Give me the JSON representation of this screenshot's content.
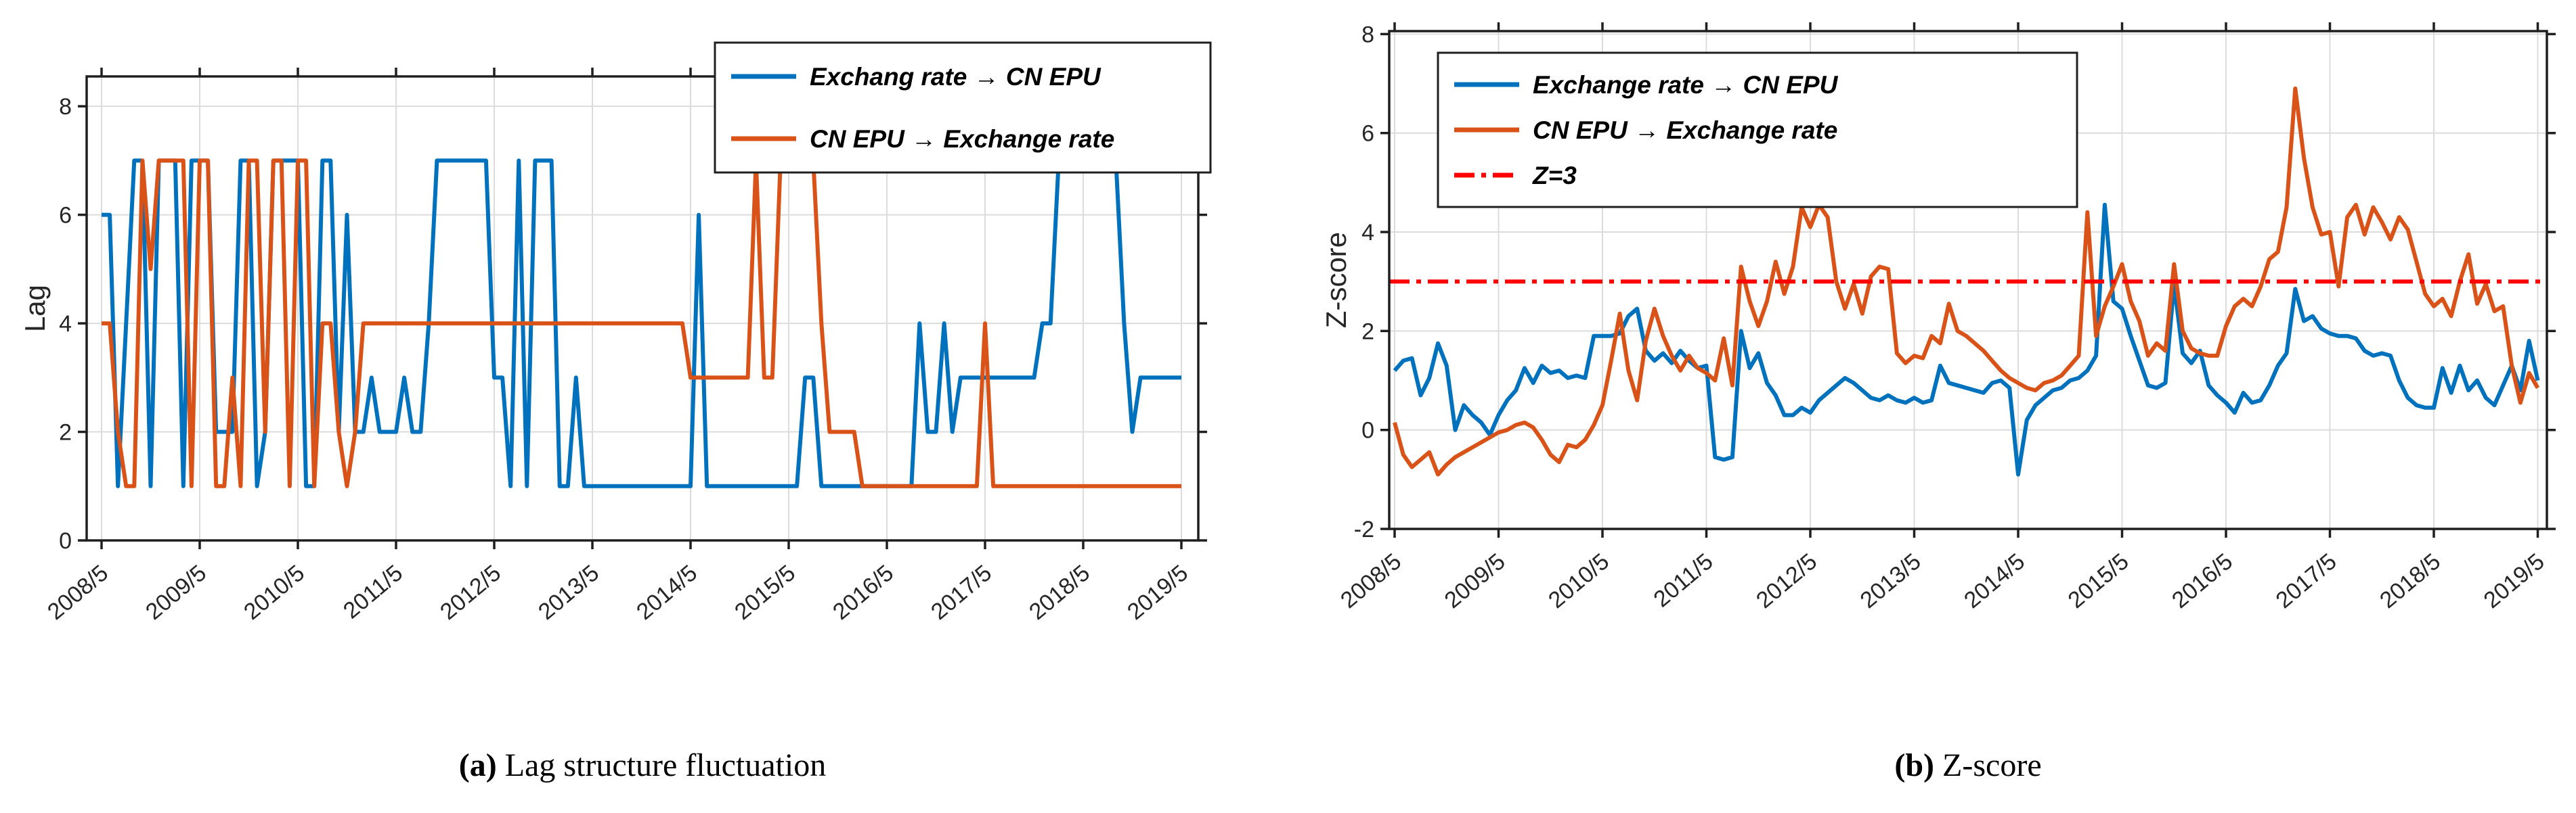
{
  "figure": {
    "background": "#ffffff"
  },
  "colors": {
    "blue": "#0072BD",
    "orange": "#D95319",
    "red": "#FF0000",
    "axis": "#1f1f1f",
    "grid": "#dcdcdc",
    "text": "#262626"
  },
  "captions": {
    "a": {
      "marker": "(a)",
      "text": " Lag structure fluctuation"
    },
    "b": {
      "marker": "(b)",
      "text": " Z-score"
    }
  },
  "chart_data": [
    {
      "id": "lag",
      "type": "line",
      "title": "",
      "xlabel": "",
      "ylabel": "Lag",
      "x_tick_labels": [
        "2008/5",
        "2009/5",
        "2010/5",
        "2011/5",
        "2012/5",
        "2013/5",
        "2014/5",
        "2015/5",
        "2016/5",
        "2017/5",
        "2018/5",
        "2019/5"
      ],
      "months_per_tick": 12,
      "n_points": 133,
      "ylim": [
        0,
        8.55
      ],
      "yticks": [
        0,
        2,
        4,
        6,
        8
      ],
      "grid": true,
      "legend": {
        "position": "top-right",
        "entries": [
          {
            "label": "Exchang rate → CN EPU",
            "color_key": "blue",
            "dash": "solid"
          },
          {
            "label": "CN EPU → Exchange rate",
            "color_key": "orange",
            "dash": "solid"
          }
        ]
      },
      "series": [
        {
          "name": "Exchang rate → CN EPU",
          "color_key": "blue",
          "values": [
            6,
            6,
            1,
            4,
            7,
            7,
            1,
            7,
            7,
            7,
            1,
            7,
            7,
            7,
            2,
            2,
            2,
            7,
            7,
            1,
            2,
            7,
            7,
            7,
            7,
            1,
            1,
            7,
            7,
            2,
            6,
            2,
            2,
            3,
            2,
            2,
            2,
            3,
            2,
            2,
            4,
            7,
            7,
            7,
            7,
            7,
            7,
            7,
            3,
            3,
            1,
            7,
            1,
            7,
            7,
            7,
            1,
            1,
            3,
            1,
            1,
            1,
            1,
            1,
            1,
            1,
            1,
            1,
            1,
            1,
            1,
            1,
            1,
            6,
            1,
            1,
            1,
            1,
            1,
            1,
            1,
            1,
            1,
            1,
            1,
            1,
            3,
            3,
            1,
            1,
            1,
            1,
            1,
            1,
            1,
            1,
            1,
            1,
            1,
            1,
            4,
            2,
            2,
            4,
            2,
            3,
            3,
            3,
            3,
            3,
            3,
            3,
            3,
            3,
            3,
            4,
            4,
            7,
            7,
            7,
            7,
            7,
            7,
            7,
            7,
            4,
            2,
            3,
            3,
            3,
            3,
            3,
            3
          ]
        },
        {
          "name": "CN EPU → Exchange rate",
          "color_key": "orange",
          "values": [
            4,
            4,
            2,
            1,
            1,
            7,
            5,
            7,
            7,
            7,
            7,
            1,
            7,
            7,
            1,
            1,
            3,
            1,
            7,
            7,
            2,
            7,
            7,
            1,
            7,
            7,
            1,
            4,
            4,
            2,
            1,
            2,
            4,
            4,
            4,
            4,
            4,
            4,
            4,
            4,
            4,
            4,
            4,
            4,
            4,
            4,
            4,
            4,
            4,
            4,
            4,
            4,
            4,
            4,
            4,
            4,
            4,
            4,
            4,
            4,
            4,
            4,
            4,
            4,
            4,
            4,
            4,
            4,
            4,
            4,
            4,
            4,
            3,
            3,
            3,
            3,
            3,
            3,
            3,
            3,
            7,
            3,
            3,
            7,
            7,
            7,
            7,
            7,
            4,
            2,
            2,
            2,
            2,
            1,
            1,
            1,
            1,
            1,
            1,
            1,
            1,
            1,
            1,
            1,
            1,
            1,
            1,
            1,
            4,
            1,
            1,
            1,
            1,
            1,
            1,
            1,
            1,
            1,
            1,
            1,
            1,
            1,
            1,
            1,
            1,
            1,
            1,
            1,
            1,
            1,
            1,
            1,
            1
          ]
        }
      ]
    },
    {
      "id": "z",
      "type": "line",
      "title": "",
      "xlabel": "",
      "ylabel": "Z-score",
      "x_tick_labels": [
        "2008/5",
        "2009/5",
        "2010/5",
        "2011/5",
        "2012/5",
        "2013/5",
        "2014/5",
        "2015/5",
        "2016/5",
        "2017/5",
        "2018/5",
        "2019/5"
      ],
      "months_per_tick": 12,
      "n_points": 133,
      "ylim": [
        -2,
        8.06
      ],
      "yticks": [
        -2,
        0,
        2,
        4,
        6,
        8
      ],
      "grid": true,
      "refline": {
        "label": "Z=3",
        "value": 3,
        "color_key": "red",
        "dash": "dashdot"
      },
      "legend": {
        "position": "top-left",
        "entries": [
          {
            "label": "Exchange rate → CN EPU",
            "color_key": "blue",
            "dash": "solid"
          },
          {
            "label": "CN EPU → Exchange rate",
            "color_key": "orange",
            "dash": "solid"
          },
          {
            "label": "Z=3",
            "color_key": "red",
            "dash": "dashdot"
          }
        ]
      },
      "series": [
        {
          "name": "Exchange rate → CN EPU",
          "color_key": "blue",
          "values": [
            1.2,
            1.4,
            1.45,
            0.7,
            1.05,
            1.75,
            1.3,
            0.0,
            0.5,
            0.3,
            0.15,
            -0.1,
            0.3,
            0.6,
            0.8,
            1.25,
            0.95,
            1.3,
            1.15,
            1.2,
            1.05,
            1.1,
            1.05,
            1.9,
            1.9,
            1.9,
            1.95,
            2.3,
            2.45,
            1.6,
            1.4,
            1.55,
            1.35,
            1.6,
            1.4,
            1.25,
            1.3,
            -0.55,
            -0.6,
            -0.55,
            2.0,
            1.25,
            1.55,
            0.95,
            0.7,
            0.3,
            0.3,
            0.45,
            0.35,
            0.6,
            0.75,
            0.9,
            1.05,
            0.95,
            0.8,
            0.65,
            0.6,
            0.7,
            0.6,
            0.55,
            0.65,
            0.55,
            0.6,
            1.3,
            0.95,
            0.9,
            0.85,
            0.8,
            0.75,
            0.95,
            1.0,
            0.85,
            -0.9,
            0.2,
            0.5,
            0.65,
            0.8,
            0.85,
            1.0,
            1.05,
            1.2,
            1.5,
            4.55,
            2.6,
            2.45,
            1.9,
            1.4,
            0.9,
            0.85,
            0.95,
            2.95,
            1.55,
            1.35,
            1.6,
            0.9,
            0.7,
            0.55,
            0.35,
            0.75,
            0.55,
            0.6,
            0.9,
            1.3,
            1.55,
            2.85,
            2.2,
            2.3,
            2.05,
            1.95,
            1.9,
            1.9,
            1.85,
            1.6,
            1.5,
            1.55,
            1.5,
            1.0,
            0.65,
            0.5,
            0.45,
            0.45,
            1.25,
            0.75,
            1.3,
            0.8,
            1.0,
            0.65,
            0.5,
            0.9,
            1.3,
            0.8,
            1.8,
            1.0
          ]
        },
        {
          "name": "CN EPU → Exchange rate",
          "color_key": "orange",
          "values": [
            0.15,
            -0.5,
            -0.75,
            -0.6,
            -0.45,
            -0.9,
            -0.7,
            -0.55,
            -0.45,
            -0.35,
            -0.25,
            -0.15,
            -0.05,
            0.0,
            0.1,
            0.15,
            0.05,
            -0.2,
            -0.5,
            -0.65,
            -0.3,
            -0.35,
            -0.2,
            0.1,
            0.5,
            1.4,
            2.35,
            1.2,
            0.6,
            1.8,
            2.45,
            1.9,
            1.5,
            1.2,
            1.5,
            1.25,
            1.15,
            1.0,
            1.85,
            0.9,
            3.3,
            2.6,
            2.1,
            2.6,
            3.4,
            2.75,
            3.3,
            4.5,
            4.1,
            4.55,
            4.3,
            3.0,
            2.45,
            2.95,
            2.35,
            3.1,
            3.3,
            3.25,
            1.55,
            1.35,
            1.5,
            1.45,
            1.9,
            1.75,
            2.55,
            2.0,
            1.9,
            1.75,
            1.6,
            1.4,
            1.2,
            1.05,
            0.95,
            0.85,
            0.8,
            0.95,
            1.0,
            1.1,
            1.3,
            1.5,
            4.4,
            1.9,
            2.5,
            2.9,
            3.35,
            2.6,
            2.2,
            1.5,
            1.75,
            1.6,
            3.35,
            2.0,
            1.65,
            1.55,
            1.5,
            1.5,
            2.1,
            2.5,
            2.65,
            2.5,
            2.9,
            3.45,
            3.6,
            4.5,
            6.9,
            5.5,
            4.5,
            3.95,
            4.0,
            2.9,
            4.3,
            4.55,
            3.95,
            4.5,
            4.2,
            3.85,
            4.3,
            4.05,
            3.4,
            2.75,
            2.5,
            2.65,
            2.3,
            3.0,
            3.55,
            2.55,
            2.95,
            2.4,
            2.5,
            1.3,
            0.55,
            1.15,
            0.85
          ]
        }
      ]
    }
  ]
}
